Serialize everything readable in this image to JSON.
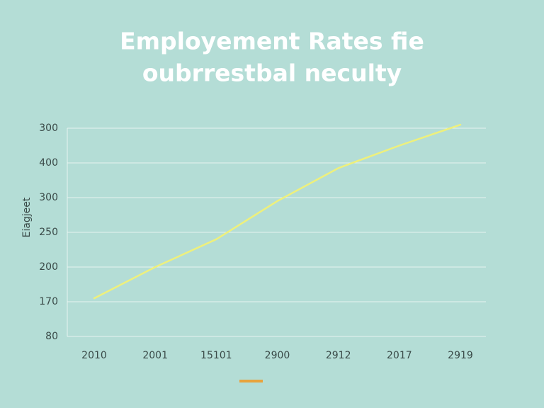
{
  "chart_data": {
    "type": "line",
    "title": [
      "Employement Rates fie",
      "oubrrestbal neculty"
    ],
    "ylabel": "Eiagjeet",
    "categories": [
      "2010",
      "2001",
      "15101",
      "2900",
      "2912",
      "2017",
      "2919"
    ],
    "series": [
      {
        "color": "#eef07c",
        "values": [
          1.1,
          2.0,
          2.8,
          3.9,
          4.85,
          5.5,
          6.1
        ]
      }
    ],
    "ylim": [
      0,
      6
    ],
    "yticks": [
      {
        "value": 0,
        "label": "80"
      },
      {
        "value": 1,
        "label": "170"
      },
      {
        "value": 2,
        "label": "200"
      },
      {
        "value": 3,
        "label": "250"
      },
      {
        "value": 4,
        "label": "300"
      },
      {
        "value": 5,
        "label": "400"
      },
      {
        "value": 6,
        "label": "300"
      }
    ],
    "grid": true,
    "legend": {
      "color": "#e8a33d"
    }
  }
}
